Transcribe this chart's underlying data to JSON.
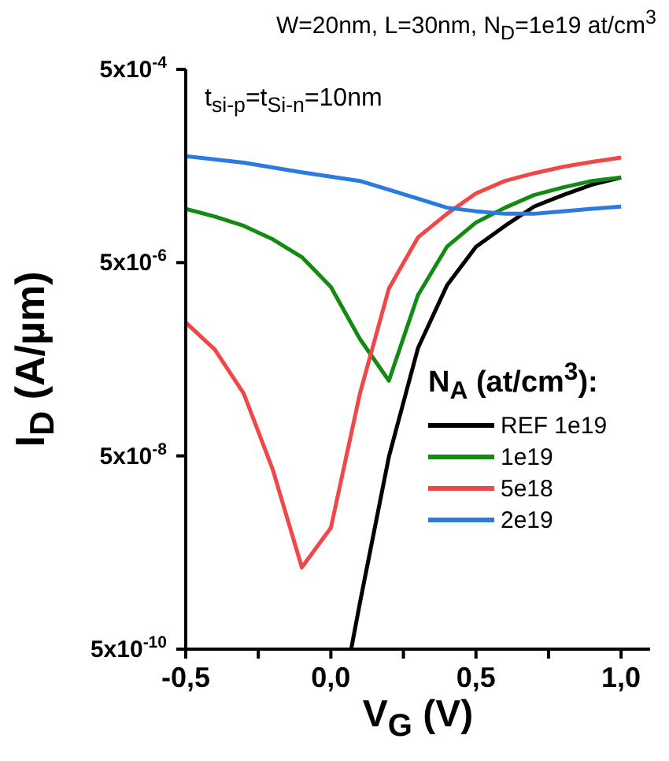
{
  "chart_data": {
    "type": "line",
    "title": "W=20nm, L=30nm, N$_{D}$=1e19 at/cm$^{3}$",
    "xlabel": "V$_{G}$ (V)",
    "ylabel": "I$_{D}$ (A/µm)",
    "legend_title": "N$_{A}$ (at/cm$^{3}$):",
    "annotations": [
      "t$_{si-p}$=t$_{Si-n}$=10nm"
    ],
    "log": "y",
    "legend": "bottom right",
    "grid": false,
    "marker": "none",
    "line_style": "solid",
    "xlim": [
      -0.5,
      1.1
    ],
    "xticks": [
      {
        "value": -0.5,
        "label": "-0,5"
      },
      {
        "value": -0.25,
        "label": null
      },
      {
        "value": 0,
        "label": "0,0"
      },
      {
        "value": 0.25,
        "label": null
      },
      {
        "value": 0.5,
        "label": "0,5"
      },
      {
        "value": 0.75,
        "label": null
      },
      {
        "value": 1,
        "label": "1,0"
      }
    ],
    "ylim": [
      5e-10,
      0.0005
    ],
    "yticks": [
      {
        "value": 5e-10,
        "label": "5x10$^{-10}$"
      },
      {
        "value": 5e-08,
        "label": "5x10$^{-8}$"
      },
      {
        "value": 5e-06,
        "label": "5x10$^{-6}$"
      },
      {
        "value": 0.0005,
        "label": "5x10$^{-4}$"
      }
    ],
    "series": [
      {
        "name": "REF 1e19",
        "color": "#000000",
        "x": [
          0.07,
          0.1,
          0.2,
          0.3,
          0.4,
          0.5,
          0.6,
          0.7,
          0.8,
          0.9,
          1.0
        ],
        "values": [
          5e-10,
          1.5e-09,
          4.9e-08,
          6.5e-07,
          2.9e-06,
          7.3e-06,
          1.2e-05,
          1.9e-05,
          2.5e-05,
          3.2e-05,
          3.8e-05
        ]
      },
      {
        "name": "1e19",
        "color": "#138a13",
        "x": [
          -0.5,
          -0.4,
          -0.3,
          -0.2,
          -0.1,
          0.0,
          0.1,
          0.2,
          0.3,
          0.4,
          0.5,
          0.6,
          0.7,
          0.8,
          0.9,
          1.0
        ],
        "values": [
          1.8e-05,
          1.5e-05,
          1.2e-05,
          8.7e-06,
          5.7e-06,
          2.8e-06,
          8.1e-07,
          3e-07,
          2.3e-06,
          7.3e-06,
          1.3e-05,
          1.85e-05,
          2.5e-05,
          3e-05,
          3.5e-05,
          3.8e-05
        ]
      },
      {
        "name": "5e18",
        "color": "#f04848",
        "x": [
          -0.5,
          -0.4,
          -0.3,
          -0.2,
          -0.1,
          0.0,
          0.1,
          0.2,
          0.3,
          0.4,
          0.5,
          0.6,
          0.7,
          0.8,
          0.9,
          1.0
        ],
        "values": [
          1.2e-06,
          6.3e-07,
          2.2e-07,
          3.6e-08,
          3.5e-09,
          9e-09,
          2.2e-07,
          2.7e-06,
          9.1e-06,
          1.6e-05,
          2.6e-05,
          3.5e-05,
          4.2e-05,
          4.9e-05,
          5.5e-05,
          6.1e-05
        ]
      },
      {
        "name": "2e19",
        "color": "#2a7ae0",
        "x": [
          -0.5,
          -0.3,
          -0.1,
          0.1,
          0.3,
          0.4,
          0.5,
          0.6,
          0.7,
          0.8,
          0.9,
          1.0
        ],
        "values": [
          6.3e-05,
          5.4e-05,
          4.3e-05,
          3.5e-05,
          2.3e-05,
          1.85e-05,
          1.7e-05,
          1.6e-05,
          1.6e-05,
          1.7e-05,
          1.8e-05,
          1.9e-05
        ]
      }
    ]
  }
}
